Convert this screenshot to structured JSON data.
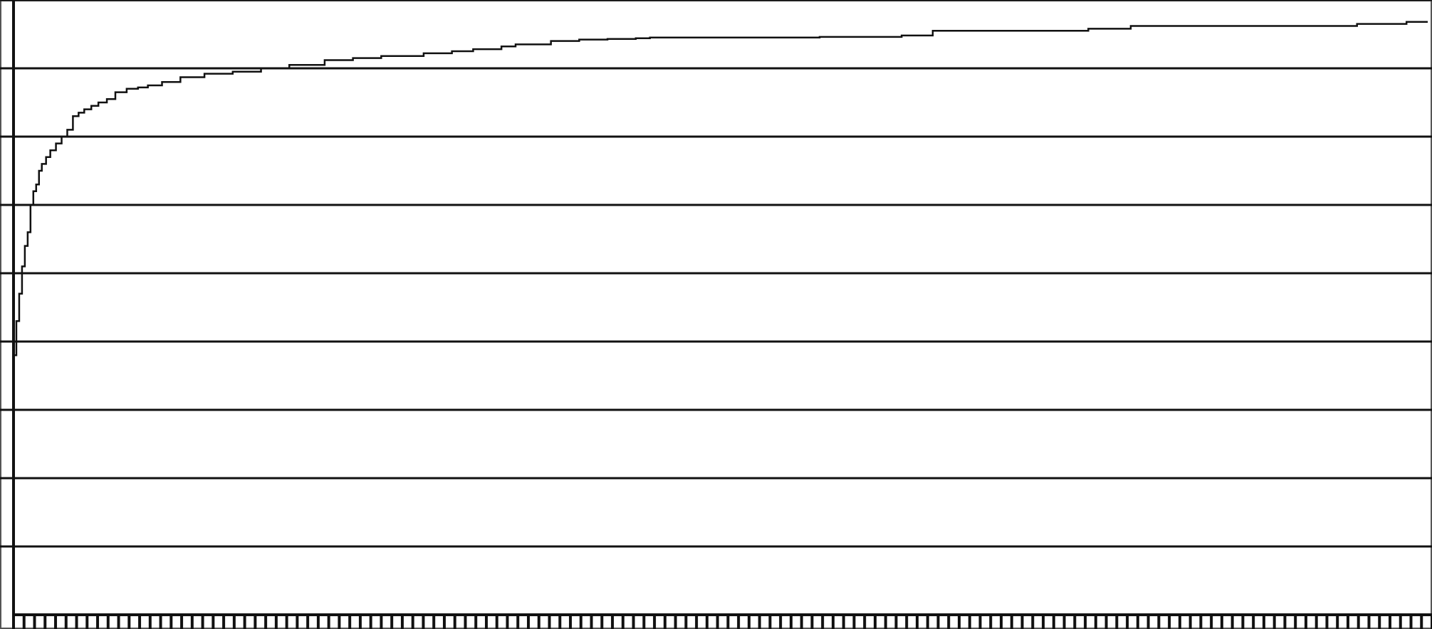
{
  "chart_data": {
    "type": "line",
    "title": "",
    "xlabel": "",
    "ylabel": "",
    "grid": true,
    "legend": "none",
    "xlim": [
      0,
      1000
    ],
    "ylim": [
      0,
      9
    ],
    "y_gridlines": [
      1,
      2,
      3,
      4,
      5,
      6,
      7,
      8,
      9
    ],
    "x_tick_count": 135,
    "series": [
      {
        "x": [
          0,
          2,
          4,
          6,
          8,
          10,
          12,
          14,
          16,
          18,
          20,
          23,
          26,
          30,
          34,
          38,
          42,
          46,
          50,
          55,
          60,
          66,
          72,
          80,
          88,
          95,
          105,
          118,
          135,
          155,
          175,
          195,
          220,
          240,
          260,
          290,
          310,
          325,
          345,
          355,
          380,
          400,
          420,
          440,
          450,
          570,
          628,
          650,
          700,
          760,
          790,
          950,
          985,
          1000
        ],
        "y": [
          3.8,
          4.3,
          4.7,
          5.1,
          5.4,
          5.6,
          6.0,
          6.2,
          6.3,
          6.5,
          6.6,
          6.7,
          6.8,
          6.9,
          7.0,
          7.1,
          7.3,
          7.35,
          7.4,
          7.45,
          7.5,
          7.55,
          7.65,
          7.7,
          7.72,
          7.75,
          7.8,
          7.87,
          7.92,
          7.95,
          8.0,
          8.05,
          8.12,
          8.15,
          8.18,
          8.22,
          8.25,
          8.28,
          8.32,
          8.35,
          8.4,
          8.42,
          8.43,
          8.44,
          8.45,
          8.46,
          8.48,
          8.55,
          8.55,
          8.58,
          8.62,
          8.65,
          8.68,
          8.68
        ]
      }
    ]
  }
}
